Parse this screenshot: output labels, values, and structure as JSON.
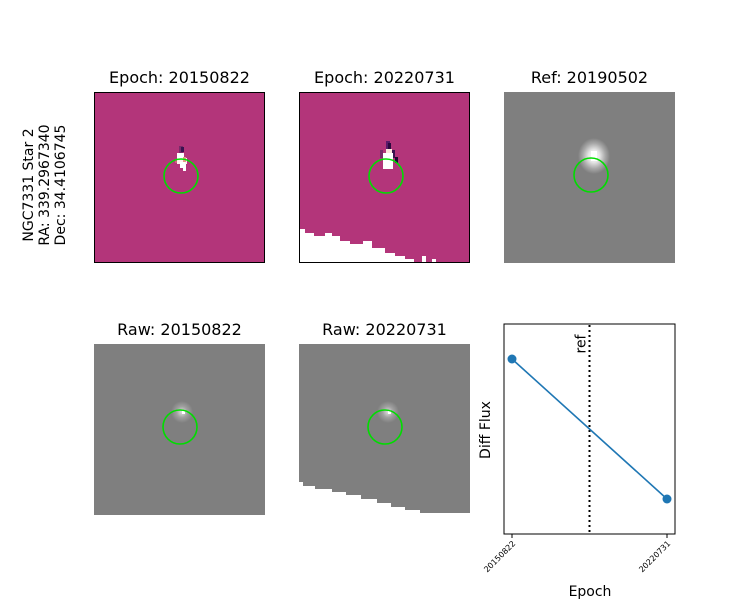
{
  "target_label": {
    "line1": "NGC7331 Star 2",
    "line2": "RA: 339.2967340",
    "line3": "Dec: 34.4106745"
  },
  "panels": {
    "diff1_title": "Epoch: 20150822",
    "diff2_title": "Epoch: 20220731",
    "ref_title": "Ref: 20190502",
    "raw1_title": "Raw: 20150822",
    "raw2_title": "Raw: 20220731"
  },
  "colors": {
    "diff_background": "#b3357a",
    "raw_background": "#7f7f7f",
    "aperture_circle": "#00dd00",
    "line": "#1f77b4"
  },
  "chart_data": {
    "type": "line",
    "title": "",
    "xlabel": "Epoch",
    "ylabel": "Diff Flux",
    "categories": [
      "20150822",
      "20220731"
    ],
    "series": [
      {
        "values": [
          1.0,
          -1.0
        ]
      }
    ],
    "reference_line": {
      "label": "ref",
      "position_between": [
        0,
        1
      ],
      "fraction": 0.5
    },
    "y_ticks_shown": false,
    "grid": false
  }
}
